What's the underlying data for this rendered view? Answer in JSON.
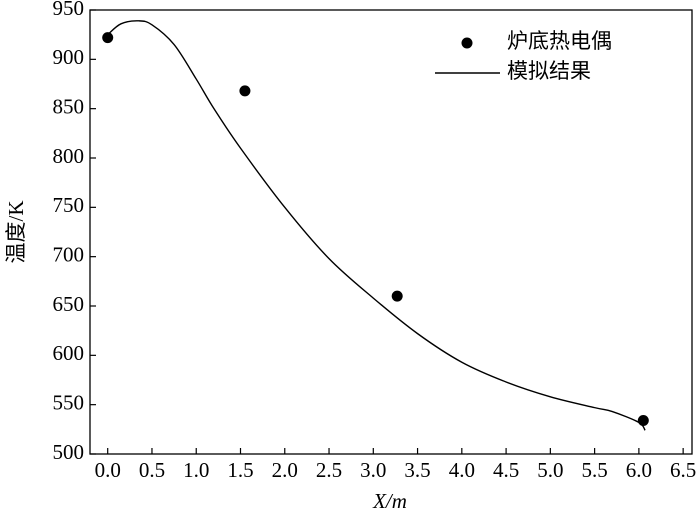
{
  "chart_data": {
    "type": "line",
    "x_label": "X/m",
    "y_label": "温度/K",
    "xlim": [
      -0.2,
      6.6
    ],
    "ylim": [
      500,
      950
    ],
    "xticks": [
      {
        "value": 0,
        "label": "0.0"
      },
      0.5,
      {
        "value": 1,
        "label": "1.0"
      },
      1.5,
      {
        "value": 2,
        "label": "2.0"
      },
      2.5,
      {
        "value": 3,
        "label": "3.0"
      },
      3.5,
      {
        "value": 4,
        "label": "4.0"
      },
      4.5,
      {
        "value": 5,
        "label": "5.0"
      },
      5.5,
      {
        "value": 6,
        "label": "6.0"
      },
      6.5
    ],
    "yticks": [
      500,
      550,
      600,
      650,
      700,
      750,
      800,
      850,
      900,
      950
    ],
    "legend": "upper right",
    "series": [
      {
        "name": "炉底热电偶",
        "kind": "scatter",
        "color": "#000000",
        "x": [
          0.0,
          1.55,
          3.27,
          6.05
        ],
        "values": [
          922,
          868,
          660,
          534
        ]
      },
      {
        "name": "模拟结果",
        "kind": "line",
        "color": "#000000",
        "x": [
          0.0,
          0.15,
          0.35,
          0.5,
          0.75,
          1.0,
          1.2,
          1.5,
          2.0,
          2.5,
          3.0,
          3.5,
          4.0,
          4.5,
          5.0,
          5.5,
          5.7,
          6.0,
          6.07
        ],
        "values": [
          925,
          936,
          939,
          935,
          915,
          880,
          850,
          810,
          750,
          698,
          658,
          622,
          593,
          573,
          558,
          547,
          543,
          532,
          524
        ]
      }
    ]
  }
}
